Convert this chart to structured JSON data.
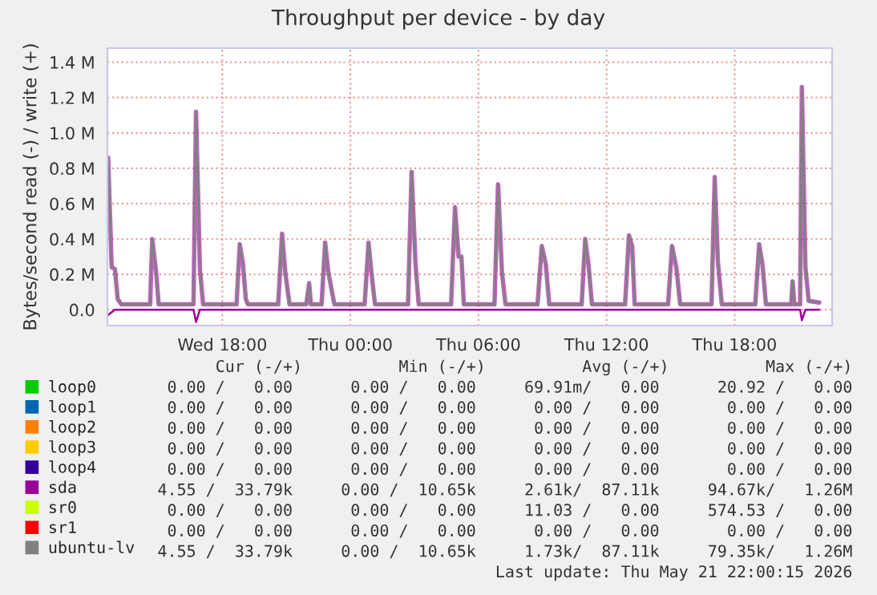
{
  "chart_data": {
    "type": "line",
    "title": "Throughput per device - by day",
    "ylabel": "Bytes/second read (-) / write (+)",
    "xlim": [
      "2026-05-20T12:37",
      "2026-05-21T22:34"
    ],
    "xticks": [
      {
        "value": "2026-05-20T18:00",
        "label": "Wed 18:00"
      },
      {
        "value": "2026-05-21T00:00",
        "label": "Thu 00:00"
      },
      {
        "value": "2026-05-21T06:00",
        "label": "Thu 06:00"
      },
      {
        "value": "2026-05-21T12:00",
        "label": "Thu 12:00"
      },
      {
        "value": "2026-05-21T18:00",
        "label": "Thu 18:00"
      }
    ],
    "ylim": [
      -0.09,
      1.48
    ],
    "yticks": [
      {
        "value": 0,
        "label": "0.0"
      },
      {
        "value": 0.2,
        "label": "0.2 M"
      },
      {
        "value": 0.4,
        "label": "0.4 M"
      },
      {
        "value": 0.6,
        "label": "0.6 M"
      },
      {
        "value": 0.8,
        "label": "0.8 M"
      },
      {
        "value": 1.0,
        "label": "1.0 M"
      },
      {
        "value": 1.2,
        "label": "1.2 M"
      },
      {
        "value": 1.4,
        "label": "1.4 M"
      }
    ],
    "grid": true,
    "legend": "bottom",
    "marker": "none",
    "line_style": "solid",
    "series": [
      {
        "name": "loop0",
        "color": "#00cc00"
      },
      {
        "name": "loop1",
        "color": "#0066b3"
      },
      {
        "name": "loop2",
        "color": "#ff8000"
      },
      {
        "name": "loop3",
        "color": "#ffcc00"
      },
      {
        "name": "loop4",
        "color": "#330099"
      },
      {
        "name": "sda",
        "color": "#990099",
        "x": [
          "2026-05-20T12:39",
          "2026-05-20T12:49",
          "2026-05-20T12:58",
          "2026-05-20T13:06",
          "2026-05-20T13:16",
          "2026-05-20T14:37",
          "2026-05-20T14:43",
          "2026-05-20T14:54",
          "2026-05-20T15:01",
          "2026-05-20T16:39",
          "2026-05-20T16:46",
          "2026-05-20T16:57",
          "2026-05-20T17:06",
          "2026-05-20T18:40",
          "2026-05-20T18:49",
          "2026-05-20T18:58",
          "2026-05-20T19:06",
          "2026-05-20T19:12",
          "2026-05-20T20:37",
          "2026-05-20T20:48",
          "2026-05-20T20:57",
          "2026-05-20T21:09",
          "2026-05-20T21:56",
          "2026-05-20T22:04",
          "2026-05-20T22:09",
          "2026-05-20T22:39",
          "2026-05-20T22:49",
          "2026-05-20T22:58",
          "2026-05-20T23:15",
          "2026-05-21T00:40",
          "2026-05-21T00:51",
          "2026-05-21T00:58",
          "2026-05-21T01:09",
          "2026-05-21T02:42",
          "2026-05-21T02:52",
          "2026-05-21T03:03",
          "2026-05-21T03:12",
          "2026-05-21T04:43",
          "2026-05-21T04:54",
          "2026-05-21T05:04",
          "2026-05-21T05:12",
          "2026-05-21T05:19",
          "2026-05-21T06:45",
          "2026-05-21T06:55",
          "2026-05-21T07:06",
          "2026-05-21T07:16",
          "2026-05-21T08:46",
          "2026-05-21T08:58",
          "2026-05-21T09:09",
          "2026-05-21T09:19",
          "2026-05-21T10:50",
          "2026-05-21T11:00",
          "2026-05-21T11:09",
          "2026-05-21T11:19",
          "2026-05-21T12:52",
          "2026-05-21T13:03",
          "2026-05-21T13:12",
          "2026-05-21T13:19",
          "2026-05-21T14:53",
          "2026-05-21T15:04",
          "2026-05-21T15:16",
          "2026-05-21T15:27",
          "2026-05-21T16:55",
          "2026-05-21T17:04",
          "2026-05-21T17:13",
          "2026-05-21T17:24",
          "2026-05-21T18:58",
          "2026-05-21T19:09",
          "2026-05-21T19:18",
          "2026-05-21T19:28",
          "2026-05-21T20:39",
          "2026-05-21T20:43",
          "2026-05-21T20:48",
          "2026-05-21T21:04",
          "2026-05-21T21:09",
          "2026-05-21T21:19",
          "2026-05-21T21:28",
          "2026-05-21T21:58"
        ],
        "values": [
          0.86,
          0.24,
          0.23,
          0.06,
          0.03,
          0.03,
          0.4,
          0.21,
          0.03,
          0.03,
          1.12,
          0.23,
          0.03,
          0.03,
          0.37,
          0.26,
          0.06,
          0.03,
          0.03,
          0.43,
          0.21,
          0.03,
          0.03,
          0.15,
          0.03,
          0.03,
          0.38,
          0.21,
          0.03,
          0.03,
          0.38,
          0.23,
          0.03,
          0.03,
          0.78,
          0.26,
          0.03,
          0.03,
          0.58,
          0.3,
          0.3,
          0.03,
          0.03,
          0.71,
          0.21,
          0.03,
          0.03,
          0.36,
          0.26,
          0.03,
          0.03,
          0.4,
          0.26,
          0.03,
          0.03,
          0.42,
          0.36,
          0.03,
          0.03,
          0.36,
          0.24,
          0.03,
          0.03,
          0.75,
          0.27,
          0.03,
          0.03,
          0.37,
          0.26,
          0.03,
          0.03,
          0.16,
          0.03,
          0.03,
          1.26,
          0.24,
          0.05,
          0.04
        ]
      },
      {
        "color": "#990099",
        "x": [
          "2026-05-20T12:39",
          "2026-05-20T12:58",
          "2026-05-20T16:39",
          "2026-05-20T16:46",
          "2026-05-20T16:57",
          "2026-05-21T21:04",
          "2026-05-21T21:09",
          "2026-05-21T21:19",
          "2026-05-21T21:58"
        ],
        "values": [
          -0.03,
          0,
          0,
          -0.07,
          0,
          0,
          -0.06,
          0,
          0
        ]
      },
      {
        "name": "sr0",
        "color": "#ccff00"
      },
      {
        "name": "sr1",
        "color": "#ff0000"
      },
      {
        "name": "ubuntu-lv",
        "color": "#808080",
        "x": [
          "2026-05-20T12:39",
          "2026-05-20T12:49",
          "2026-05-20T12:58",
          "2026-05-20T13:06",
          "2026-05-20T13:16",
          "2026-05-20T14:37",
          "2026-05-20T14:43",
          "2026-05-20T14:54",
          "2026-05-20T15:01",
          "2026-05-20T16:39",
          "2026-05-20T16:46",
          "2026-05-20T16:57",
          "2026-05-20T17:06",
          "2026-05-20T18:40",
          "2026-05-20T18:49",
          "2026-05-20T18:58",
          "2026-05-20T19:06",
          "2026-05-20T19:12",
          "2026-05-20T20:37",
          "2026-05-20T20:48",
          "2026-05-20T20:57",
          "2026-05-20T21:09",
          "2026-05-20T21:56",
          "2026-05-20T22:04",
          "2026-05-20T22:09",
          "2026-05-20T22:39",
          "2026-05-20T22:49",
          "2026-05-20T22:58",
          "2026-05-20T23:15",
          "2026-05-21T00:40",
          "2026-05-21T00:51",
          "2026-05-21T00:58",
          "2026-05-21T01:09",
          "2026-05-21T02:42",
          "2026-05-21T02:52",
          "2026-05-21T03:03",
          "2026-05-21T03:12",
          "2026-05-21T04:43",
          "2026-05-21T04:54",
          "2026-05-21T05:04",
          "2026-05-21T05:12",
          "2026-05-21T05:19",
          "2026-05-21T06:45",
          "2026-05-21T06:55",
          "2026-05-21T07:06",
          "2026-05-21T07:16",
          "2026-05-21T08:46",
          "2026-05-21T08:58",
          "2026-05-21T09:09",
          "2026-05-21T09:19",
          "2026-05-21T10:50",
          "2026-05-21T11:00",
          "2026-05-21T11:09",
          "2026-05-21T11:19",
          "2026-05-21T12:52",
          "2026-05-21T13:03",
          "2026-05-21T13:12",
          "2026-05-21T13:19",
          "2026-05-21T14:53",
          "2026-05-21T15:04",
          "2026-05-21T15:16",
          "2026-05-21T15:27",
          "2026-05-21T16:55",
          "2026-05-21T17:04",
          "2026-05-21T17:13",
          "2026-05-21T17:24",
          "2026-05-21T18:58",
          "2026-05-21T19:09",
          "2026-05-21T19:18",
          "2026-05-21T19:28",
          "2026-05-21T20:39",
          "2026-05-21T20:43",
          "2026-05-21T20:48",
          "2026-05-21T21:04",
          "2026-05-21T21:09",
          "2026-05-21T21:19",
          "2026-05-21T21:28",
          "2026-05-21T21:58"
        ],
        "values": [
          0.86,
          0.24,
          0.23,
          0.06,
          0.03,
          0.03,
          0.4,
          0.21,
          0.03,
          0.03,
          1.12,
          0.23,
          0.03,
          0.03,
          0.37,
          0.26,
          0.06,
          0.03,
          0.03,
          0.43,
          0.21,
          0.03,
          0.03,
          0.15,
          0.03,
          0.03,
          0.38,
          0.21,
          0.03,
          0.03,
          0.38,
          0.23,
          0.03,
          0.03,
          0.78,
          0.26,
          0.03,
          0.03,
          0.58,
          0.3,
          0.3,
          0.03,
          0.03,
          0.71,
          0.21,
          0.03,
          0.03,
          0.36,
          0.26,
          0.03,
          0.03,
          0.4,
          0.26,
          0.03,
          0.03,
          0.42,
          0.36,
          0.03,
          0.03,
          0.36,
          0.24,
          0.03,
          0.03,
          0.75,
          0.27,
          0.03,
          0.03,
          0.37,
          0.26,
          0.03,
          0.03,
          0.16,
          0.03,
          0.03,
          1.26,
          0.24,
          0.05,
          0.04
        ]
      }
    ],
    "annotations": [
      "   Cur (-/+)          Min (-/+)          Avg (-/+)          Max (-/+)",
      "  0.00 /   0.00      0.00 /   0.00     69.91m/   0.00      20.92 /   0.00",
      "  0.00 /   0.00      0.00 /   0.00      0.00 /   0.00       0.00 /   0.00",
      "  0.00 /   0.00      0.00 /   0.00      0.00 /   0.00       0.00 /   0.00",
      "  0.00 /   0.00      0.00 /   0.00      0.00 /   0.00       0.00 /   0.00",
      "  0.00 /   0.00      0.00 /   0.00      0.00 /   0.00       0.00 /   0.00",
      "  4.55 /  33.79k     0.00 /  10.65k     2.61k/  87.11k     94.67k/   1.26M",
      "  0.00 /   0.00      0.00 /   0.00     11.03 /   0.00     574.53 /   0.00",
      "  0.00 /   0.00      0.00 /   0.00      0.00 /   0.00       0.00 /   0.00",
      "  4.55 /  33.79k     0.00 /  10.65k     1.73k/  87.11k     79.35k/   1.26M",
      "Last update: Thu May 21 22:00:15 2026"
    ]
  }
}
